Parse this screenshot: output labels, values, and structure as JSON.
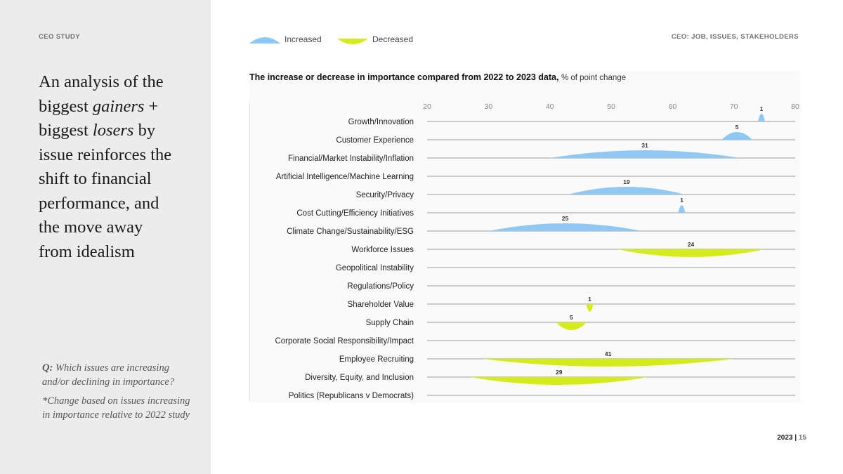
{
  "left_panel": {
    "kicker": "CEO STUDY",
    "headline_parts": [
      "An analysis of the biggest ",
      "gainers",
      " + biggest ",
      "losers",
      " by issue reinforces the shift to financial performance, and the move away from idealism"
    ],
    "question_prefix": "Q:",
    "question": "Which issues are increasing and/or declining in importance?",
    "footnote": "*Change based on issues increasing in importance relative to 2022 study"
  },
  "header": {
    "right_kicker": "CEO: JOB, ISSUES, STAKEHOLDERS"
  },
  "legend": {
    "increased": "Increased",
    "decreased": "Decreased"
  },
  "colors": {
    "increased": "#8ec8f3",
    "decreased": "#d4ec1c",
    "axis": "#9a9a9a",
    "text": "#222222"
  },
  "chart_data": {
    "type": "range_arc",
    "title_bold": "The increase or decrease in importance compared from 2022 to 2023 data,",
    "title_unit": "% of point change",
    "xlim": [
      20,
      80
    ],
    "xticks": [
      20,
      30,
      40,
      50,
      60,
      70,
      80
    ],
    "categories": [
      "Growth/Innovation",
      "Customer Experience",
      "Financial/Market Instability/Inflation",
      "Artificial Intelligence/Machine Learning",
      "Security/Privacy",
      "Cost Cutting/Efficiency Initiatives",
      "Climate Change/Sustainability/ESG",
      "Workforce Issues",
      "Geopolitical Instability",
      "Regulations/Policy",
      "Shareholder Value",
      "Supply Chain",
      "Corporate Social Responsibility/Impact",
      "Employee Recruiting",
      "Diversity, Equity, and Inclusion",
      "Politics (Republicans v Democrats)"
    ],
    "series": [
      {
        "name": "Increased",
        "points": [
          {
            "category": "Growth/Innovation",
            "from": 74,
            "to": 75,
            "change": 1
          },
          {
            "category": "Customer Experience",
            "from": 68,
            "to": 73,
            "change": 5
          },
          {
            "category": "Financial/Market Instability/Inflation",
            "from": 40,
            "to": 71,
            "change": 31
          },
          {
            "category": "Security/Privacy",
            "from": 43,
            "to": 62,
            "change": 19
          },
          {
            "category": "Cost Cutting/Efficiency Initiatives",
            "from": 61,
            "to": 62,
            "change": 1
          },
          {
            "category": "Climate Change/Sustainability/ESG",
            "from": 30,
            "to": 55,
            "change": 25
          }
        ]
      },
      {
        "name": "Decreased",
        "points": [
          {
            "category": "Workforce Issues",
            "from": 51,
            "to": 75,
            "change": 24
          },
          {
            "category": "Shareholder Value",
            "from": 46,
            "to": 47,
            "change": 1
          },
          {
            "category": "Supply Chain",
            "from": 41,
            "to": 46,
            "change": 5
          },
          {
            "category": "Employee Recruiting",
            "from": 29,
            "to": 70,
            "change": 41
          },
          {
            "category": "Diversity, Equity, and Inclusion",
            "from": 27,
            "to": 56,
            "change": 29
          }
        ]
      }
    ]
  },
  "footer": {
    "year": "2023",
    "separator": "|",
    "page": "15"
  }
}
